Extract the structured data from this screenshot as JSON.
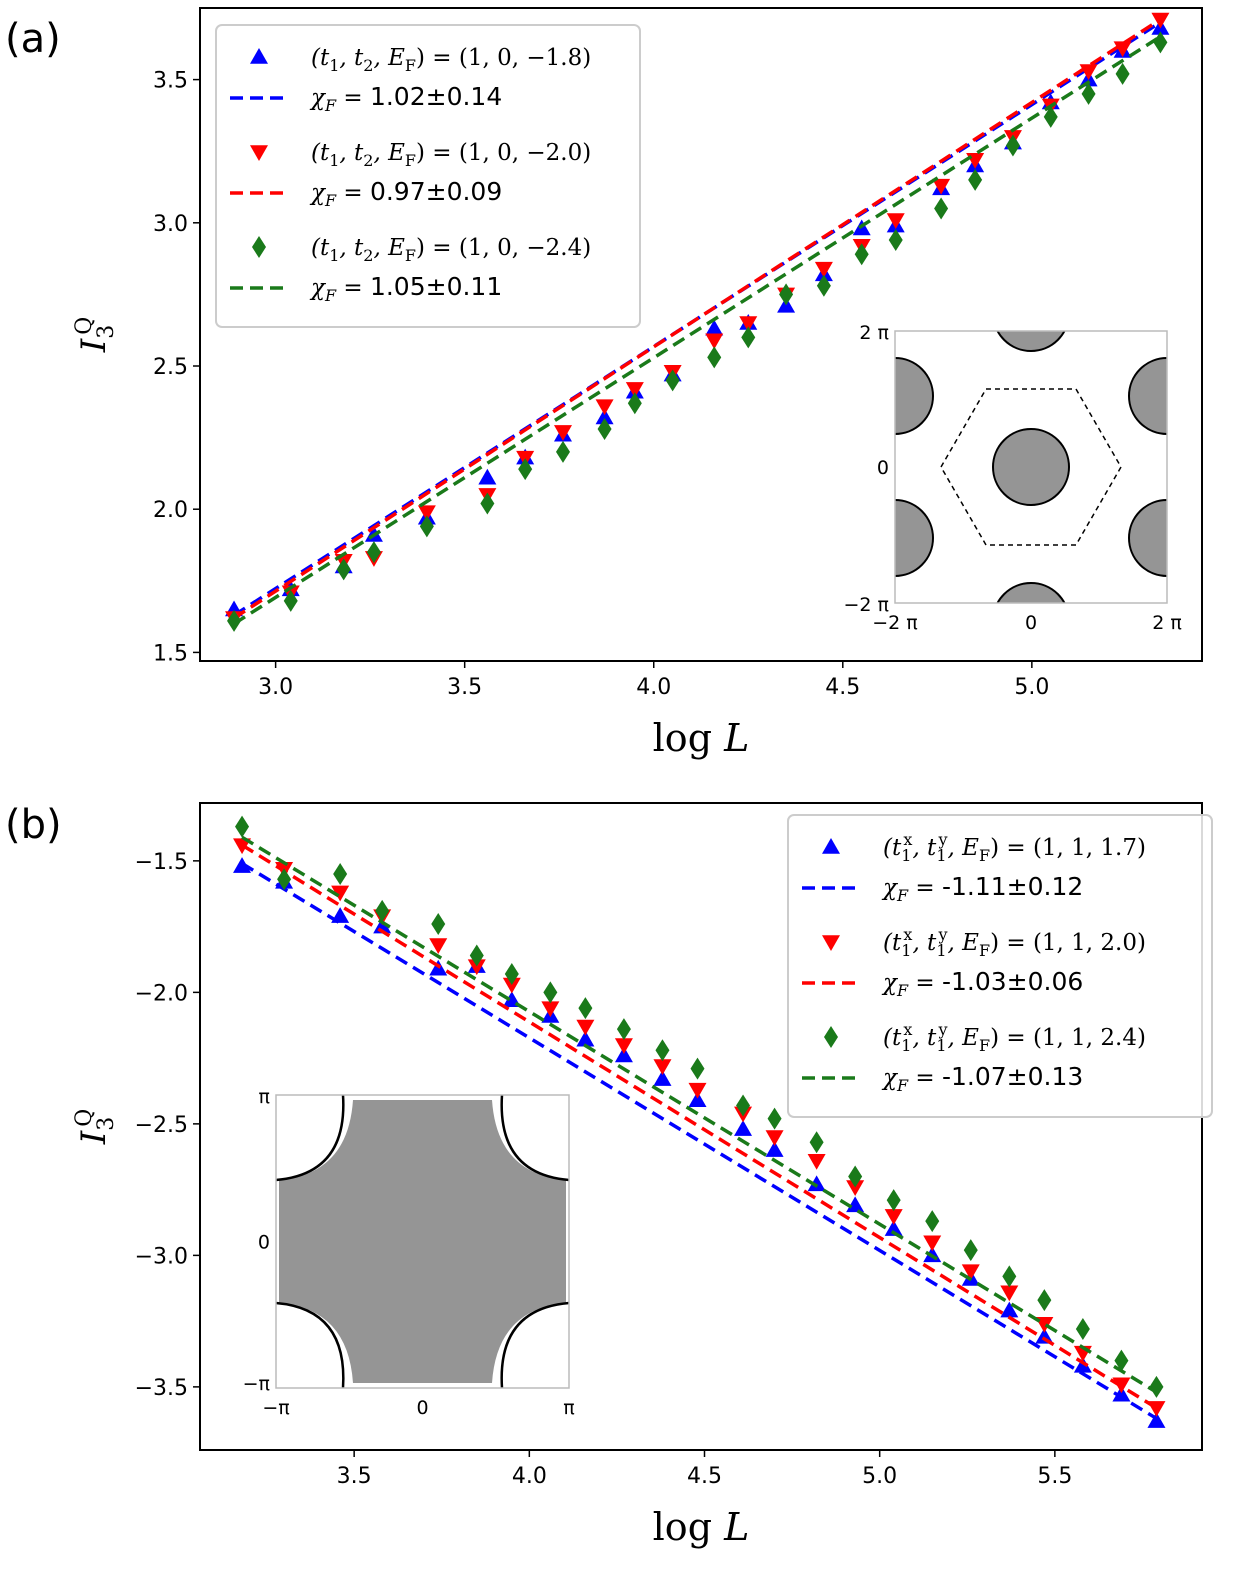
{
  "chart_data": [
    {
      "panel": "(a)",
      "type": "line",
      "xlabel": "log L",
      "ylabel": "I₃^Q",
      "xlim": [
        2.8,
        5.45
      ],
      "ylim": [
        1.47,
        3.75
      ],
      "xticks": [
        "3.0",
        "3.5",
        "4.0",
        "4.5",
        "5.0"
      ],
      "yticks": [
        "1.5",
        "2.0",
        "2.5",
        "3.0",
        "3.5"
      ],
      "x": [
        2.89,
        3.04,
        3.18,
        3.26,
        3.4,
        3.56,
        3.66,
        3.76,
        3.87,
        3.95,
        4.05,
        4.16,
        4.25,
        4.35,
        4.45,
        4.55,
        4.64,
        4.76,
        4.85,
        4.95,
        5.05,
        5.15,
        5.24,
        5.34
      ],
      "series": [
        {
          "name": "(t₁, t₂, E_F) = (1, 0, −1.8)",
          "fit_label": "χ_F = 1.02±0.14",
          "color": "#0000ff",
          "marker": "triangle-up",
          "values": [
            1.65,
            1.72,
            1.8,
            1.91,
            1.97,
            2.11,
            2.18,
            2.26,
            2.32,
            2.41,
            2.47,
            2.63,
            2.65,
            2.71,
            2.82,
            2.98,
            2.99,
            3.12,
            3.2,
            3.28,
            3.42,
            3.5,
            3.6,
            3.68
          ],
          "fit": [
            1.63,
            3.7
          ]
        },
        {
          "name": "(t₁, t₂, E_F) = (1, 0, −2.0)",
          "fit_label": "χ_F = 0.97±0.09",
          "color": "#ff0000",
          "marker": "triangle-down",
          "values": [
            1.62,
            1.71,
            1.82,
            1.83,
            1.99,
            2.05,
            2.18,
            2.27,
            2.36,
            2.42,
            2.48,
            2.59,
            2.65,
            2.75,
            2.84,
            2.92,
            3.01,
            3.13,
            3.22,
            3.3,
            3.41,
            3.53,
            3.61,
            3.71
          ],
          "fit": [
            1.62,
            3.71
          ]
        },
        {
          "name": "(t₁, t₂, E_F) = (1, 0, −2.4)",
          "fit_label": "χ_F = 1.05±0.11",
          "color": "#1a7a1a",
          "marker": "diamond",
          "values": [
            1.61,
            1.68,
            1.79,
            1.85,
            1.94,
            2.02,
            2.14,
            2.2,
            2.28,
            2.37,
            2.45,
            2.53,
            2.6,
            2.75,
            2.78,
            2.89,
            2.94,
            3.05,
            3.15,
            3.27,
            3.37,
            3.45,
            3.52,
            3.63
          ],
          "fit": [
            1.6,
            3.65
          ]
        }
      ],
      "inset": {
        "kind": "fermi-surface-hexagonal",
        "xticks": [
          "−2 π",
          "0",
          "2 π"
        ],
        "yticks": [
          "2 π",
          "0",
          "−2 π"
        ]
      }
    },
    {
      "panel": "(b)",
      "type": "line",
      "xlabel": "log L",
      "ylabel": "I₃^Q",
      "xlim": [
        3.06,
        5.92
      ],
      "ylim": [
        -3.74,
        -1.28
      ],
      "xticks": [
        "3.5",
        "4.0",
        "4.5",
        "5.0",
        "5.5"
      ],
      "yticks": [
        "−1.5",
        "−2.0",
        "−2.5",
        "−3.0",
        "−3.5"
      ],
      "x": [
        3.18,
        3.3,
        3.46,
        3.58,
        3.74,
        3.85,
        3.95,
        4.06,
        4.16,
        4.27,
        4.38,
        4.48,
        4.61,
        4.7,
        4.82,
        4.93,
        5.04,
        5.15,
        5.26,
        5.37,
        5.47,
        5.58,
        5.69,
        5.79
      ],
      "series": [
        {
          "name": "(t₁ˣ, t₁ʸ, E_F) = (1, 1, 1.7)",
          "fit_label": "χ_F = -1.11±0.12",
          "color": "#0000ff",
          "marker": "triangle-up",
          "values": [
            -1.52,
            -1.58,
            -1.71,
            -1.75,
            -1.91,
            -1.9,
            -2.03,
            -2.09,
            -2.18,
            -2.24,
            -2.33,
            -2.41,
            -2.52,
            -2.6,
            -2.73,
            -2.81,
            -2.9,
            -3.0,
            -3.09,
            -3.21,
            -3.31,
            -3.42,
            -3.53,
            -3.63
          ],
          "fit": [
            -1.51,
            -3.62
          ]
        },
        {
          "name": "(t₁ˣ, t₁ʸ, E_F) = (1, 1, 2.0)",
          "fit_label": "χ_F = -1.03±0.06",
          "color": "#ff0000",
          "marker": "triangle-down",
          "values": [
            -1.44,
            -1.53,
            -1.62,
            -1.71,
            -1.82,
            -1.9,
            -1.97,
            -2.06,
            -2.13,
            -2.2,
            -2.28,
            -2.37,
            -2.46,
            -2.55,
            -2.64,
            -2.74,
            -2.85,
            -2.95,
            -3.06,
            -3.14,
            -3.26,
            -3.37,
            -3.49,
            -3.58
          ],
          "fit": [
            -1.44,
            -3.58
          ]
        },
        {
          "name": "(t₁ˣ, t₁ʸ, E_F) = (1, 1, 2.4)",
          "fit_label": "χ_F = -1.07±0.13",
          "color": "#1a7a1a",
          "marker": "diamond",
          "values": [
            -1.37,
            -1.57,
            -1.55,
            -1.69,
            -1.74,
            -1.86,
            -1.93,
            -2.0,
            -2.06,
            -2.14,
            -2.22,
            -2.29,
            -2.43,
            -2.48,
            -2.57,
            -2.7,
            -2.79,
            -2.87,
            -2.98,
            -3.08,
            -3.17,
            -3.28,
            -3.4,
            -3.5
          ],
          "fit": [
            -1.41,
            -3.52
          ]
        }
      ],
      "inset": {
        "kind": "fermi-surface-square",
        "xticks": [
          "−π",
          "0",
          "π"
        ],
        "yticks": [
          "π",
          "0",
          "−π"
        ]
      }
    }
  ],
  "legend_labels": {
    "a": [
      {
        "pre": "(t",
        "s1": "1",
        "mid": ", t",
        "s2": "2",
        "mid2": ", E",
        "s3": "F",
        "post": ") = (1, 0, −1.8)"
      },
      {
        "pre": "(t",
        "s1": "1",
        "mid": ", t",
        "s2": "2",
        "mid2": ", E",
        "s3": "F",
        "post": ") = (1, 0, −2.0)"
      },
      {
        "pre": "(t",
        "s1": "1",
        "mid": ", t",
        "s2": "2",
        "mid2": ", E",
        "s3": "F",
        "post": ") = (1, 0, −2.4)"
      }
    ],
    "b": [
      {
        "pre": "(t",
        "s1": "1",
        "sup1": "x",
        "mid": ", t",
        "s2": "1",
        "sup2": "y",
        "mid2": ", E",
        "s3": "F",
        "post": ") = (1, 1, 1.7)"
      },
      {
        "pre": "(t",
        "s1": "1",
        "sup1": "x",
        "mid": ", t",
        "s2": "1",
        "sup2": "y",
        "mid2": ", E",
        "s3": "F",
        "post": ") = (1, 1, 2.0)"
      },
      {
        "pre": "(t",
        "s1": "1",
        "sup1": "x",
        "mid": ", t",
        "s2": "1",
        "sup2": "y",
        "mid2": ", E",
        "s3": "F",
        "post": ") = (1, 1, 2.4)"
      }
    ],
    "chi": "χ",
    "chi_sub": "F",
    "eq": " = ",
    "fits_a": [
      "1.02±0.14",
      "0.97±0.09",
      "1.05±0.11"
    ],
    "fits_b": [
      "-1.11±0.12",
      "-1.03±0.06",
      "-1.07±0.13"
    ]
  },
  "panel_labels": [
    "(a)",
    "(b)"
  ],
  "axis_text": {
    "xlabel_log": "log ",
    "xlabel_L": "L",
    "ylabel_I": "I",
    "ysub": "3",
    "ysup": "Q"
  }
}
